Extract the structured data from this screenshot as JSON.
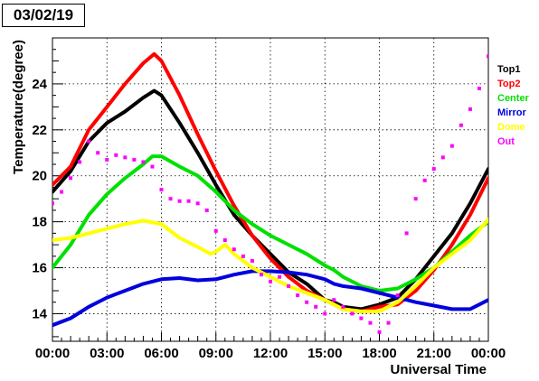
{
  "chart_data": {
    "type": "line",
    "title": "03/02/19",
    "xlabel": "Universal Time",
    "ylabel": "Temperature(degree)",
    "xlim": [
      0,
      24
    ],
    "ylim": [
      12.8,
      26.0
    ],
    "grid": true,
    "legend_position": "right",
    "x_ticks": [
      {
        "value": 0,
        "label": "00:00"
      },
      {
        "value": 3,
        "label": "03:00"
      },
      {
        "value": 6,
        "label": "06:00"
      },
      {
        "value": 9,
        "label": "09:00"
      },
      {
        "value": 12,
        "label": "12:00"
      },
      {
        "value": 15,
        "label": "15:00"
      },
      {
        "value": 18,
        "label": "18:00"
      },
      {
        "value": 21,
        "label": "21:00"
      },
      {
        "value": 24,
        "label": "00:00"
      }
    ],
    "y_ticks": [
      {
        "value": 14,
        "label": "14"
      },
      {
        "value": 16,
        "label": "16"
      },
      {
        "value": 18,
        "label": "18"
      },
      {
        "value": 20,
        "label": "20"
      },
      {
        "value": 22,
        "label": "22"
      },
      {
        "value": 24,
        "label": "24"
      }
    ],
    "series": [
      {
        "name": "Top1",
        "color": "#000000",
        "style": "line",
        "x": [
          0,
          1,
          2,
          3,
          4,
          5,
          5.6,
          6,
          7,
          8,
          9,
          10,
          11,
          12,
          13,
          14,
          15,
          15.5,
          16,
          17,
          18,
          19,
          20,
          21,
          22,
          23,
          24
        ],
        "y": [
          19.3,
          20.2,
          21.5,
          22.3,
          22.8,
          23.4,
          23.7,
          23.5,
          22.3,
          21.0,
          19.6,
          18.3,
          17.4,
          16.6,
          15.8,
          15.3,
          14.6,
          14.5,
          14.3,
          14.2,
          14.4,
          14.7,
          15.5,
          16.5,
          17.5,
          18.8,
          20.3
        ]
      },
      {
        "name": "Top2",
        "color": "#ff0000",
        "style": "line",
        "x": [
          0,
          1,
          2,
          3,
          4,
          5,
          5.6,
          6,
          7,
          8,
          9,
          10,
          11,
          12,
          13,
          14,
          15,
          15.5,
          16,
          17,
          18,
          19,
          20,
          21,
          22,
          23,
          24
        ],
        "y": [
          19.6,
          20.4,
          22.0,
          23.0,
          24.0,
          24.9,
          25.3,
          25.0,
          23.5,
          21.8,
          20.2,
          18.7,
          17.4,
          16.4,
          15.6,
          15.0,
          14.6,
          14.4,
          14.2,
          14.1,
          14.3,
          14.4,
          15.0,
          15.9,
          17.0,
          18.3,
          19.9
        ]
      },
      {
        "name": "Center",
        "color": "#00e000",
        "style": "line",
        "x": [
          0,
          1,
          2,
          3,
          4,
          5,
          5.5,
          6,
          7,
          8,
          9,
          10,
          11,
          12,
          13,
          14,
          15,
          15.5,
          16,
          17,
          18,
          19,
          20,
          21,
          22,
          23,
          24
        ],
        "y": [
          16.0,
          17.0,
          18.3,
          19.2,
          19.9,
          20.5,
          20.85,
          20.85,
          20.4,
          20.0,
          19.3,
          18.5,
          17.9,
          17.4,
          17.0,
          16.6,
          16.1,
          15.9,
          15.6,
          15.2,
          15.0,
          15.1,
          15.5,
          16.0,
          16.7,
          17.4,
          18.0
        ]
      },
      {
        "name": "Mirror",
        "color": "#0000dd",
        "style": "line",
        "x": [
          0,
          1,
          2,
          3,
          4,
          5,
          6,
          7,
          8,
          9,
          10,
          11,
          12,
          13,
          14,
          15,
          15.5,
          16,
          17,
          18,
          19,
          20,
          21,
          22,
          23,
          24
        ],
        "y": [
          13.5,
          13.8,
          14.3,
          14.7,
          15.0,
          15.3,
          15.5,
          15.55,
          15.45,
          15.5,
          15.7,
          15.85,
          15.85,
          15.8,
          15.7,
          15.5,
          15.3,
          15.2,
          15.1,
          14.9,
          14.7,
          14.5,
          14.35,
          14.2,
          14.2,
          14.6
        ]
      },
      {
        "name": "Dome",
        "color": "#ffff00",
        "style": "line",
        "x": [
          0,
          1,
          2,
          3,
          4,
          5,
          6,
          7,
          8,
          8.7,
          9,
          9.5,
          10,
          11,
          12,
          13,
          14,
          15,
          15.5,
          16,
          17,
          18,
          19,
          20,
          21,
          22,
          23,
          24
        ],
        "y": [
          17.2,
          17.3,
          17.5,
          17.7,
          17.9,
          18.05,
          17.9,
          17.3,
          16.9,
          16.6,
          16.7,
          17.0,
          16.6,
          16.0,
          15.6,
          15.2,
          14.9,
          14.6,
          14.4,
          14.2,
          14.1,
          14.1,
          14.5,
          15.2,
          16.0,
          16.6,
          17.2,
          18.1
        ]
      },
      {
        "name": "Out",
        "color": "#ff00ff",
        "style": "scatter",
        "x": [
          0,
          0.5,
          1,
          1.5,
          2,
          2.5,
          3,
          3.5,
          4,
          4.5,
          5,
          5.5,
          6,
          6.5,
          7,
          7.5,
          8,
          8.5,
          9,
          9.5,
          10,
          10.5,
          11,
          11.5,
          12,
          12.5,
          13,
          13.5,
          14,
          14.5,
          15,
          15.5,
          16,
          16.5,
          17,
          17.5,
          18,
          18.5,
          19,
          19.5,
          20,
          20.5,
          21,
          21.5,
          22,
          22.5,
          23,
          23.5,
          24
        ],
        "y": [
          18.8,
          19.3,
          19.9,
          20.6,
          21.5,
          21.0,
          20.7,
          20.9,
          20.8,
          20.7,
          20.6,
          20.4,
          19.4,
          19.0,
          18.9,
          18.9,
          18.8,
          18.5,
          17.6,
          17.2,
          16.8,
          16.5,
          16.3,
          15.7,
          15.4,
          15.6,
          15.2,
          14.8,
          14.5,
          14.3,
          14.0,
          14.6,
          14.3,
          14.0,
          13.8,
          13.6,
          13.2,
          13.6,
          14.8,
          17.5,
          19.0,
          19.8,
          20.3,
          20.8,
          21.3,
          22.2,
          22.9,
          23.8,
          25.2
        ]
      }
    ]
  }
}
